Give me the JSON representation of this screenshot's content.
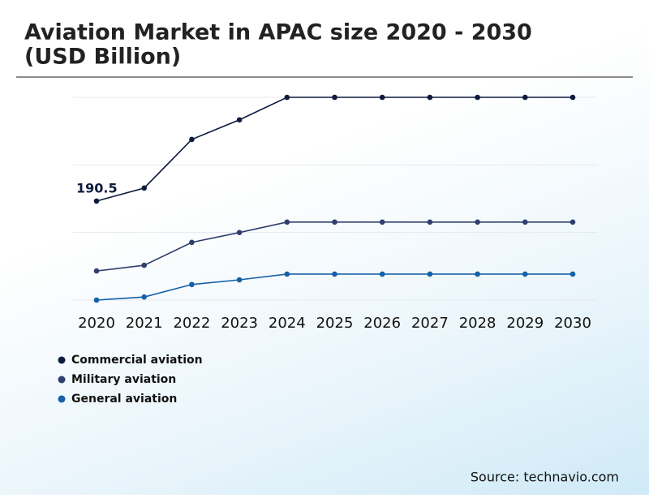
{
  "chart_data": {
    "type": "line",
    "title": "Aviation Market in APAC size 2020 - 2030",
    "subtitle": "(USD Billion)",
    "categories": [
      "2020",
      "2021",
      "2022",
      "2023",
      "2024",
      "2025",
      "2026",
      "2027",
      "2028",
      "2029",
      "2030"
    ],
    "series": [
      {
        "name": "Commercial aviation",
        "color": "#0d1b3e",
        "values": [
          190.5,
          215.5,
          309,
          346.7,
          390,
          390,
          390,
          390,
          390,
          390,
          390
        ]
      },
      {
        "name": "Military aviation",
        "color": "#2f3f6e",
        "values": [
          56,
          67,
          111,
          130,
          150,
          150,
          150,
          150,
          150,
          150,
          150
        ]
      },
      {
        "name": "General aviation",
        "color": "#1560a8",
        "values": [
          0,
          6,
          30,
          39,
          50,
          50,
          50,
          50,
          50,
          50,
          50
        ]
      }
    ],
    "ylim": [
      0,
      390
    ],
    "yticks": [
      0,
      130,
      260,
      390
    ],
    "grid": true,
    "source": "Source: technavio.com"
  }
}
